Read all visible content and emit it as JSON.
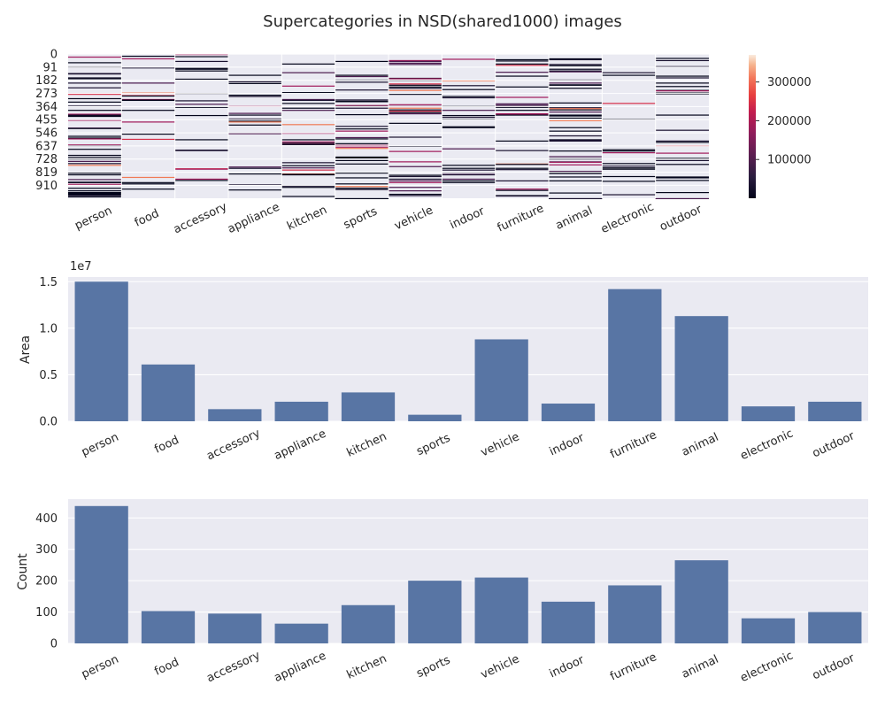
{
  "title": "Supercategories in NSD(shared1000) images",
  "colors": {
    "bar": "#5875a4",
    "panel_bg": "#eaeaf2",
    "grid": "#ffffff",
    "text": "#262626"
  },
  "chart_data": [
    {
      "type": "heatmap",
      "categories": [
        "person",
        "food",
        "accessory",
        "appliance",
        "kitchen",
        "sports",
        "vehicle",
        "indoor",
        "furniture",
        "animal",
        "electronic",
        "outdoor"
      ],
      "row_tick_labels": [
        "0",
        "91",
        "182",
        "273",
        "364",
        "455",
        "546",
        "637",
        "728",
        "819",
        "910"
      ],
      "n_rows": 1000,
      "colorbar": {
        "ticks": [
          100000,
          200000,
          300000
        ],
        "tick_labels": [
          "100000",
          "200000",
          "300000"
        ],
        "range": [
          0,
          370000
        ],
        "colormap": "rocket"
      },
      "grid": true
    },
    {
      "type": "bar",
      "categories": [
        "person",
        "food",
        "accessory",
        "appliance",
        "kitchen",
        "sports",
        "vehicle",
        "indoor",
        "furniture",
        "animal",
        "electronic",
        "outdoor"
      ],
      "values": [
        15000000,
        6100000,
        1300000,
        2100000,
        3100000,
        700000,
        8800000,
        1900000,
        14200000,
        11300000,
        1600000,
        2100000
      ],
      "ylabel": "Area",
      "offset_label": "1e7",
      "ylim": [
        0,
        15500000
      ],
      "yticks": [
        0,
        5000000,
        10000000,
        15000000
      ],
      "ytick_labels": [
        "0.0",
        "0.5",
        "1.0",
        "1.5"
      ],
      "grid": true
    },
    {
      "type": "bar",
      "categories": [
        "person",
        "food",
        "accessory",
        "appliance",
        "kitchen",
        "sports",
        "vehicle",
        "indoor",
        "furniture",
        "animal",
        "electronic",
        "outdoor"
      ],
      "values": [
        438,
        103,
        95,
        63,
        122,
        200,
        210,
        133,
        185,
        265,
        80,
        100
      ],
      "ylabel": "Count",
      "ylim": [
        0,
        460
      ],
      "yticks": [
        0,
        100,
        200,
        300,
        400
      ],
      "ytick_labels": [
        "0",
        "100",
        "200",
        "300",
        "400"
      ],
      "grid": true
    }
  ]
}
